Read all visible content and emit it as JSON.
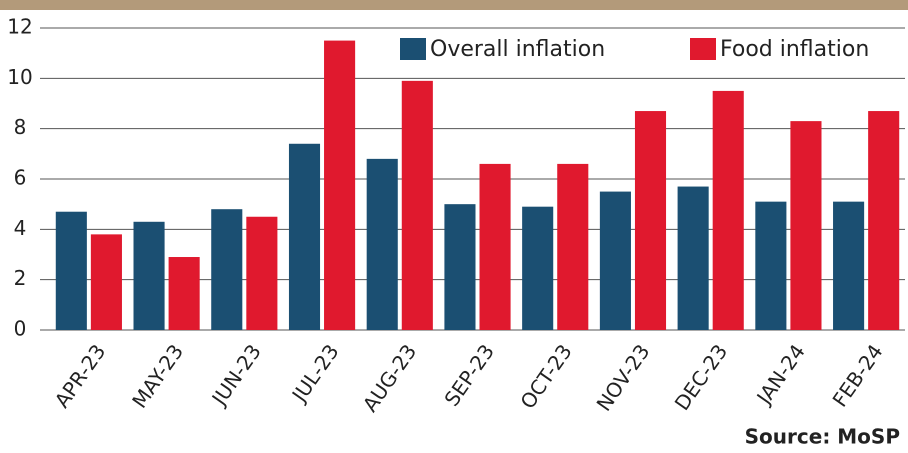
{
  "chart_data": {
    "type": "bar",
    "categories": [
      "APR-23",
      "MAY-23",
      "JUN-23",
      "JUL-23",
      "AUG-23",
      "SEP-23",
      "OCT-23",
      "NOV-23",
      "DEC-23",
      "JAN-24",
      "FEB-24"
    ],
    "series": [
      {
        "name": "Overall inflation",
        "color": "#1b4f72",
        "values": [
          4.7,
          4.3,
          4.8,
          7.4,
          6.8,
          5.0,
          4.9,
          5.5,
          5.7,
          5.1,
          5.1
        ]
      },
      {
        "name": "Food inflation",
        "color": "#e0192e",
        "values": [
          3.8,
          2.9,
          4.5,
          11.5,
          9.9,
          6.6,
          6.6,
          8.7,
          9.5,
          8.3,
          8.7
        ]
      }
    ],
    "ylim": [
      0,
      12
    ],
    "yticks": [
      0,
      2,
      4,
      6,
      8,
      10,
      12
    ],
    "grid": true,
    "legend": "top-right",
    "source": "Source: MoSP"
  }
}
